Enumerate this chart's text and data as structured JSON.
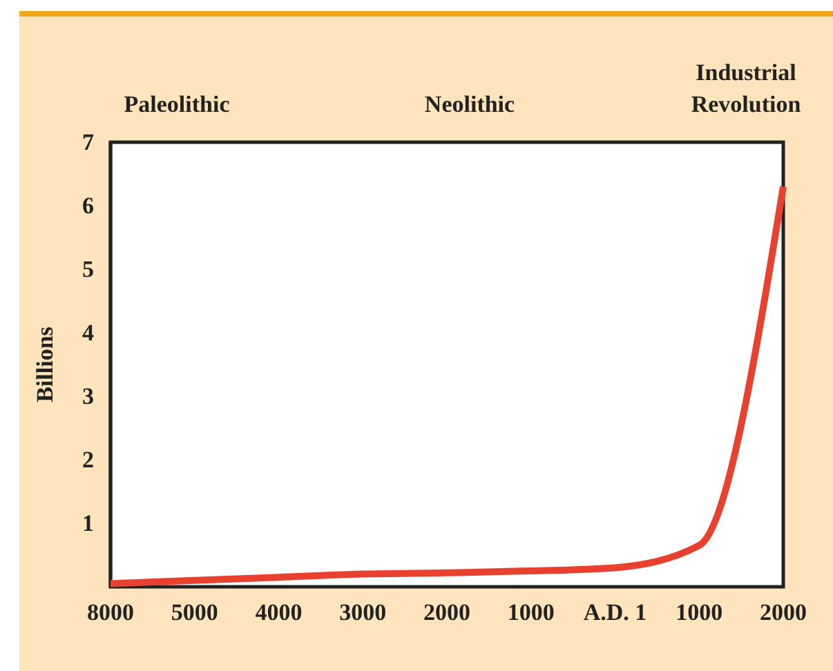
{
  "chart_data": {
    "type": "line",
    "ylabel": "Billions",
    "categories": [
      "8000",
      "5000",
      "4000",
      "3000",
      "2000",
      "1000",
      "A.D. 1",
      "1000",
      "2000"
    ],
    "series": [
      {
        "color": "#e8412f",
        "values": [
          0.05,
          0.1,
          0.15,
          0.2,
          0.22,
          0.25,
          0.3,
          0.65,
          6.3
        ]
      }
    ],
    "ylim": [
      0,
      7
    ],
    "yticks": [
      1,
      2,
      3,
      4,
      5,
      6,
      7
    ],
    "grid": false,
    "marker": "none",
    "line_style": "solid",
    "annotations": [
      "Paleolithic",
      "Neolithic",
      "Industrial Revolution"
    ]
  }
}
